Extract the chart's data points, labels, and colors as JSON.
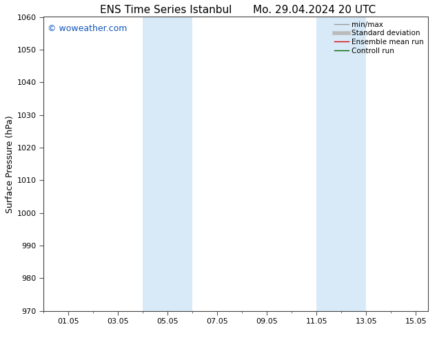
{
  "title_left": "ENS Time Series Istanbul",
  "title_right": "Mo. 29.04.2024 20 UTC",
  "ylabel": "Surface Pressure (hPa)",
  "ylim": [
    970,
    1060
  ],
  "yticks": [
    970,
    980,
    990,
    1000,
    1010,
    1020,
    1030,
    1040,
    1050,
    1060
  ],
  "xlim": [
    0.0,
    15.5
  ],
  "xtick_positions": [
    1.0,
    3.0,
    5.0,
    7.0,
    9.0,
    11.0,
    13.0,
    15.0
  ],
  "xtick_labels": [
    "01.05",
    "03.05",
    "05.05",
    "07.05",
    "09.05",
    "11.05",
    "13.05",
    "15.05"
  ],
  "shaded_bands": [
    {
      "x_start": 4.0,
      "x_end": 6.0
    },
    {
      "x_start": 11.0,
      "x_end": 13.0
    }
  ],
  "shaded_color": "#d8eaf7",
  "watermark": "© woweather.com",
  "watermark_color": "#1155bb",
  "watermark_fontsize": 9,
  "legend_entries": [
    {
      "label": "min/max",
      "color": "#999999",
      "lw": 1.0
    },
    {
      "label": "Standard deviation",
      "color": "#bbbbbb",
      "lw": 4.0
    },
    {
      "label": "Ensemble mean run",
      "color": "#dd0000",
      "lw": 1.0
    },
    {
      "label": "Controll run",
      "color": "#006600",
      "lw": 1.0
    }
  ],
  "background_color": "#ffffff",
  "title_fontsize": 11,
  "axis_label_fontsize": 9,
  "tick_fontsize": 8,
  "legend_fontsize": 7.5
}
